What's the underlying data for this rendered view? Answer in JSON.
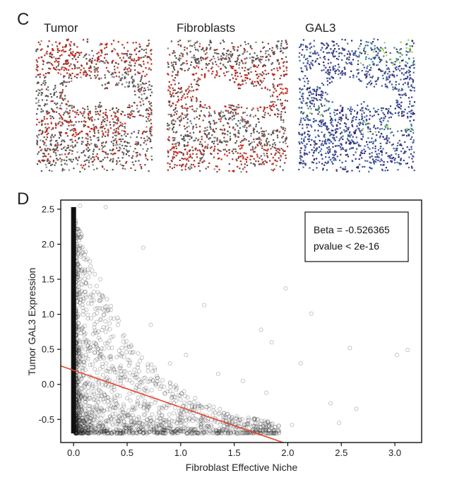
{
  "panel_c": {
    "letter": "C",
    "maps": [
      {
        "title": "Tumor",
        "scheme": "red-on-gray",
        "accent": "#c0281c",
        "base": "#555555"
      },
      {
        "title": "Fibroblasts",
        "scheme": "red-on-gray",
        "accent": "#c0281c",
        "base": "#555555"
      },
      {
        "title": "GAL3",
        "scheme": "viridis",
        "accent": "#7ac143",
        "base": "#3b3a8c"
      }
    ]
  },
  "panel_d": {
    "letter": "D"
  },
  "chart_data": {
    "type": "scatter",
    "xlabel": "Fibroblast Effective Niche",
    "ylabel": "Tumor GAL3 Expression",
    "xlim": [
      -0.12,
      3.25
    ],
    "ylim": [
      -0.83,
      2.63
    ],
    "xticks": [
      "0.0",
      "0.5",
      "1.0",
      "1.5",
      "2.0",
      "2.5",
      "3.0"
    ],
    "xtick_values": [
      0,
      0.5,
      1,
      1.5,
      2,
      2.5,
      3
    ],
    "yticks": [
      "-0.5",
      "0.0",
      "0.5",
      "1.0",
      "1.5",
      "2.0",
      "2.5"
    ],
    "ytick_values": [
      -0.5,
      0,
      0.5,
      1,
      1.5,
      2,
      2.5
    ],
    "zero_column": {
      "x": 0.0,
      "y_min": -0.7,
      "y_max": 2.53
    },
    "regression_line": {
      "intercept": 0.2,
      "slope": -0.526365,
      "color": "#e8452c"
    },
    "annotation": {
      "line1": "Beta = -0.526365",
      "line2": "pvalue < 2e-16"
    },
    "highlight_points": [
      {
        "x": 0.06,
        "y": 2.55
      },
      {
        "x": 0.3,
        "y": 2.53
      },
      {
        "x": 0.65,
        "y": 1.95
      },
      {
        "x": 1.22,
        "y": 1.13
      },
      {
        "x": 1.98,
        "y": 1.37
      },
      {
        "x": 2.22,
        "y": 1.01
      },
      {
        "x": 1.75,
        "y": 0.78
      },
      {
        "x": 1.85,
        "y": 0.6
      },
      {
        "x": 2.58,
        "y": 0.52
      },
      {
        "x": 3.02,
        "y": 0.42
      },
      {
        "x": 3.12,
        "y": 0.49
      },
      {
        "x": 2.12,
        "y": 0.3
      },
      {
        "x": 2.04,
        "y": -0.58
      },
      {
        "x": 2.48,
        "y": -0.55
      },
      {
        "x": 2.64,
        "y": -0.35
      },
      {
        "x": 2.4,
        "y": -0.27
      },
      {
        "x": 1.8,
        "y": -0.12
      },
      {
        "x": 1.58,
        "y": 0.05
      },
      {
        "x": 0.45,
        "y": 0.52
      },
      {
        "x": 0.9,
        "y": 0.3
      },
      {
        "x": 1.05,
        "y": 0.42
      },
      {
        "x": 1.35,
        "y": 0.15
      },
      {
        "x": 0.72,
        "y": 0.85
      },
      {
        "x": 0.25,
        "y": 1.5
      }
    ],
    "scatter_density": "dense cloud concentrated at x<0.5 and y<0.3, thinning to the right and upward",
    "scatter_n": 1800
  }
}
